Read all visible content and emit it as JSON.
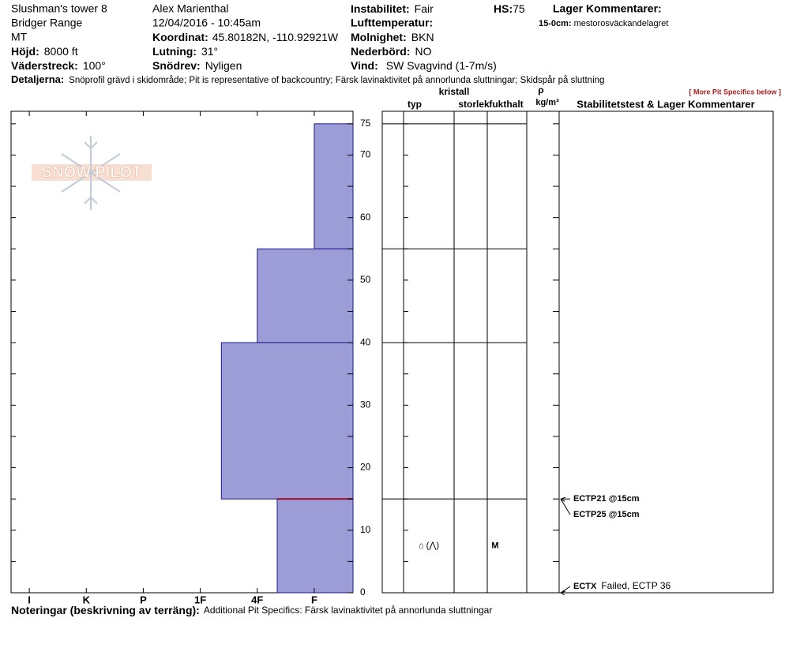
{
  "header": {
    "site": "Slushman's tower 8",
    "range": "Bridger Range",
    "state": "MT",
    "observer": "Alex Marienthal",
    "datetime": "12/04/2016 - 10:45am",
    "elevation": {
      "label": "Höjd:",
      "value": "8000 ft"
    },
    "aspect": {
      "label": "Väderstreck:",
      "value": "100°"
    },
    "coordinates": {
      "label": "Koordinat:",
      "value": "45.80182N, -110.92921W"
    },
    "slope": {
      "label": "Lutning:",
      "value": "31°"
    },
    "wind_loading": {
      "label": "Snödrev:",
      "value": "Nyligen"
    },
    "stability": {
      "label": "Instabilitet:",
      "value": "Fair"
    },
    "air_temperature": {
      "label": "Lufttemperatur:"
    },
    "sky": {
      "label": "Molnighet:",
      "value": "BKN"
    },
    "precipitation": {
      "label": "Nederbörd:",
      "value": "NO"
    },
    "wind": {
      "label": "Vind:",
      "value": "SW Svagvind (1-7m/s)"
    },
    "hs": {
      "label": "HS:",
      "value": 75
    },
    "layer_comments_title": "Lager Kommentarer:",
    "layer_comments": [
      {
        "label": "15-0cm:",
        "text": "mestorosväckandelagret"
      }
    ],
    "details": {
      "label": "Detaljerna:",
      "value": "Snöprofil grävd i skidområde;  Pit is representative of backcountry;  Färsk lavinaktivitet på annorlunda sluttningar;  Skidspår på sluttning"
    },
    "more_link": "[ More Pit Specifics below ]"
  },
  "logo": "SNOW PILOT",
  "footer": {
    "label": "Noteringar (beskrivning av terräng):",
    "value": "Additional Pit Specifics: Färsk lavinaktivitet på annorlunda sluttningar"
  },
  "columns": {
    "type": "typ",
    "crystal": "kristall",
    "size": "storlek",
    "moisture": "fukthalt",
    "density_symbol": "ρ",
    "density_unit": "kg/m³",
    "tests": "Stabilitetstest & Lager Kommentarer"
  },
  "chart_data": {
    "type": "bar",
    "orientation": "horizontal",
    "color": "#9c9cd6",
    "edge_color": "#1a1a8c",
    "ylim": [
      0,
      77
    ],
    "yticks": [
      0,
      10,
      20,
      30,
      40,
      50,
      60,
      70,
      75
    ],
    "yminorticks": [
      5,
      15,
      25,
      35,
      45,
      55,
      65
    ],
    "xlim": [
      0.68,
      6.68
    ],
    "xticks": [
      {
        "value": 1,
        "label": "I"
      },
      {
        "value": 2,
        "label": "K"
      },
      {
        "value": 3,
        "label": "P"
      },
      {
        "value": 4,
        "label": "1F"
      },
      {
        "value": 5,
        "label": "4F"
      },
      {
        "value": 6,
        "label": "F"
      }
    ],
    "layers": {
      "top": [
        75,
        55,
        40,
        15
      ],
      "bottom": [
        55,
        40,
        15,
        0
      ],
      "hardness": [
        6,
        5,
        4.37,
        5.35
      ],
      "crystal_type": [
        null,
        null,
        null,
        "⌂ (⋀)"
      ],
      "moisture": [
        null,
        null,
        null,
        "M"
      ]
    },
    "failure_depth": 15,
    "failure_color": "#a01030",
    "tests": [
      {
        "label": "ECTP21 @15cm",
        "depth": 15
      },
      {
        "label": "ECTP25 @15cm",
        "depth": 15
      },
      {
        "label": "ECTX",
        "note": "Failed, ECTP 36",
        "depth": 0
      }
    ]
  }
}
